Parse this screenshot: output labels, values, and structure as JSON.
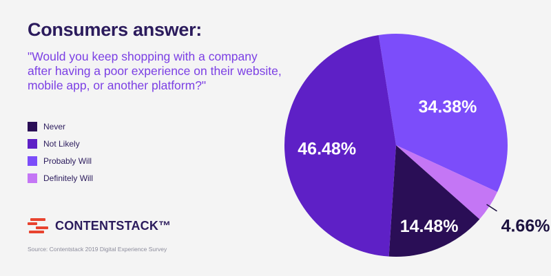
{
  "header": {
    "title": "Consumers answer:",
    "question": "\"Would you keep shopping with a company after having a poor experience on their website, mobile app, or another platform?\""
  },
  "brand": {
    "name": "CONTENTSTACK™"
  },
  "source": "Source: Contentstack 2019 Digital Experience Survey",
  "colors": {
    "never": "#2a0e56",
    "not_likely": "#5e20c6",
    "probably_will": "#7c4dfa",
    "definitely_will": "#c476f5",
    "brand_red": "#e8432f"
  },
  "chart_data": {
    "type": "pie",
    "legend_position": "left",
    "slices": [
      {
        "label": "Probably Will",
        "value": 34.38,
        "display": "34.38%",
        "color": "#7c4dfa"
      },
      {
        "label": "Definitely Will",
        "value": 4.66,
        "display": "4.66%",
        "color": "#c476f5"
      },
      {
        "label": "Never",
        "value": 14.48,
        "display": "14.48%",
        "color": "#2a0e56"
      },
      {
        "label": "Not Likely",
        "value": 46.48,
        "display": "46.48%",
        "color": "#5e20c6"
      }
    ],
    "legend_order": [
      "Never",
      "Not Likely",
      "Probably Will",
      "Definitely Will"
    ]
  }
}
